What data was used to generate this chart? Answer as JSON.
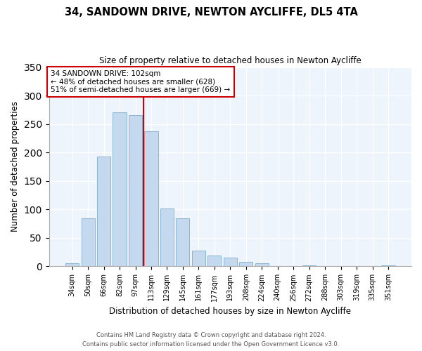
{
  "title": "34, SANDOWN DRIVE, NEWTON AYCLIFFE, DL5 4TA",
  "subtitle": "Size of property relative to detached houses in Newton Aycliffe",
  "xlabel": "Distribution of detached houses by size in Newton Aycliffe",
  "ylabel": "Number of detached properties",
  "bar_labels": [
    "34sqm",
    "50sqm",
    "66sqm",
    "82sqm",
    "97sqm",
    "113sqm",
    "129sqm",
    "145sqm",
    "161sqm",
    "177sqm",
    "193sqm",
    "208sqm",
    "224sqm",
    "240sqm",
    "256sqm",
    "272sqm",
    "288sqm",
    "303sqm",
    "319sqm",
    "335sqm",
    "351sqm"
  ],
  "bar_values": [
    6,
    84,
    193,
    270,
    265,
    237,
    102,
    84,
    28,
    19,
    15,
    8,
    5,
    0,
    0,
    2,
    0,
    0,
    0,
    0,
    2
  ],
  "bar_color": "#c5d9ee",
  "bar_edge_color": "#8ab4d4",
  "vline_x": 4.5,
  "vline_color": "#cc0000",
  "ylim": [
    0,
    350
  ],
  "yticks": [
    0,
    50,
    100,
    150,
    200,
    250,
    300,
    350
  ],
  "annotation_line1": "34 SANDOWN DRIVE: 102sqm",
  "annotation_line2": "← 48% of detached houses are smaller (628)",
  "annotation_line3": "51% of semi-detached houses are larger (669) →",
  "annotation_box_color": "white",
  "annotation_box_edge": "#cc0000",
  "bg_color": "#eef4fb",
  "footer_line1": "Contains HM Land Registry data © Crown copyright and database right 2024.",
  "footer_line2": "Contains public sector information licensed under the Open Government Licence v3.0."
}
